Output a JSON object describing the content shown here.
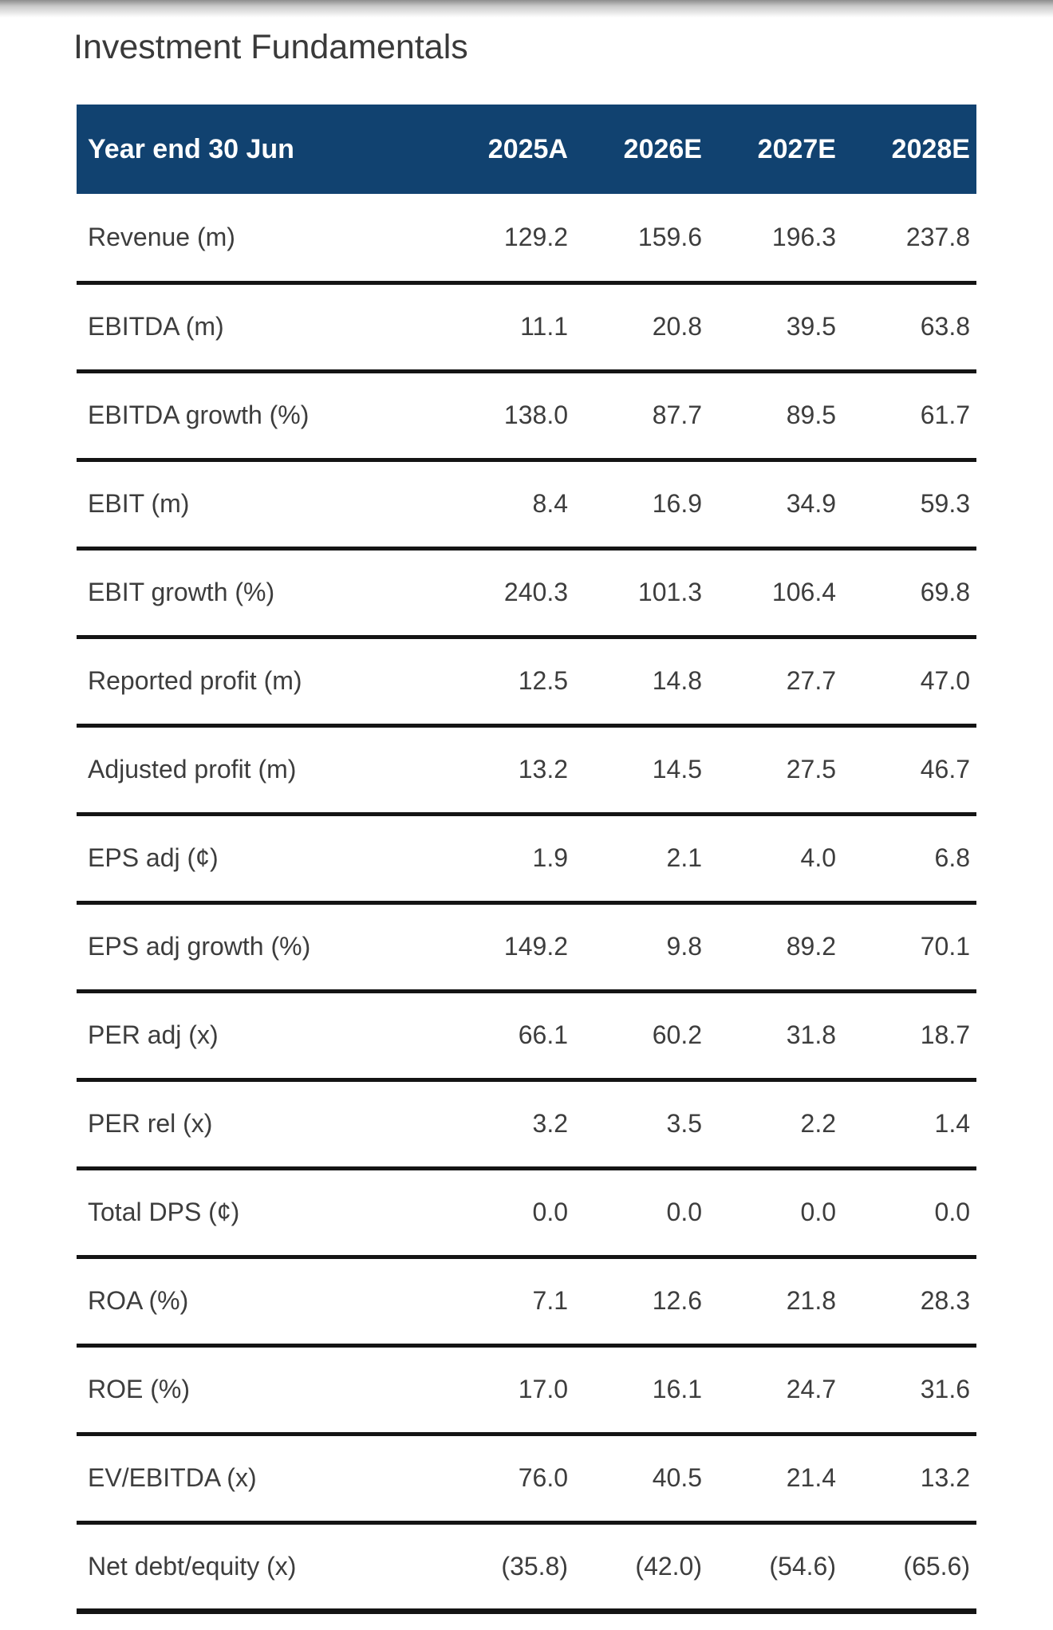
{
  "page": {
    "title": "Investment Fundamentals"
  },
  "colors": {
    "header_bg": "#114270",
    "header_text": "#ffffff",
    "body_text": "#3d3d3d",
    "title_text": "#3a3a3a",
    "rule": "#141414",
    "page_bg": "#ffffff"
  },
  "table": {
    "header": {
      "label": "Year end 30 Jun",
      "columns": [
        "2025A",
        "2026E",
        "2027E",
        "2028E"
      ]
    },
    "rows": [
      {
        "label": "Revenue (m)",
        "values": [
          "129.2",
          "159.6",
          "196.3",
          "237.8"
        ]
      },
      {
        "label": "EBITDA (m)",
        "values": [
          "11.1",
          "20.8",
          "39.5",
          "63.8"
        ]
      },
      {
        "label": "EBITDA growth (%)",
        "values": [
          "138.0",
          "87.7",
          "89.5",
          "61.7"
        ]
      },
      {
        "label": "EBIT (m)",
        "values": [
          "8.4",
          "16.9",
          "34.9",
          "59.3"
        ]
      },
      {
        "label": "EBIT growth (%)",
        "values": [
          "240.3",
          "101.3",
          "106.4",
          "69.8"
        ]
      },
      {
        "label": "Reported profit (m)",
        "values": [
          "12.5",
          "14.8",
          "27.7",
          "47.0"
        ]
      },
      {
        "label": "Adjusted profit (m)",
        "values": [
          "13.2",
          "14.5",
          "27.5",
          "46.7"
        ]
      },
      {
        "label": "EPS adj (¢)",
        "values": [
          "1.9",
          "2.1",
          "4.0",
          "6.8"
        ]
      },
      {
        "label": "EPS adj growth (%)",
        "values": [
          "149.2",
          "9.8",
          "89.2",
          "70.1"
        ]
      },
      {
        "label": "PER adj (x)",
        "values": [
          "66.1",
          "60.2",
          "31.8",
          "18.7"
        ]
      },
      {
        "label": "PER rel (x)",
        "values": [
          "3.2",
          "3.5",
          "2.2",
          "1.4"
        ]
      },
      {
        "label": "Total DPS (¢)",
        "values": [
          "0.0",
          "0.0",
          "0.0",
          "0.0"
        ]
      },
      {
        "label": "ROA (%)",
        "values": [
          "7.1",
          "12.6",
          "21.8",
          "28.3"
        ]
      },
      {
        "label": "ROE (%)",
        "values": [
          "17.0",
          "16.1",
          "24.7",
          "31.6"
        ]
      },
      {
        "label": "EV/EBITDA (x)",
        "values": [
          "76.0",
          "40.5",
          "21.4",
          "13.2"
        ]
      },
      {
        "label": "Net debt/equity (x)",
        "values": [
          "(35.8)",
          "(42.0)",
          "(54.6)",
          "(65.6)"
        ]
      }
    ]
  }
}
